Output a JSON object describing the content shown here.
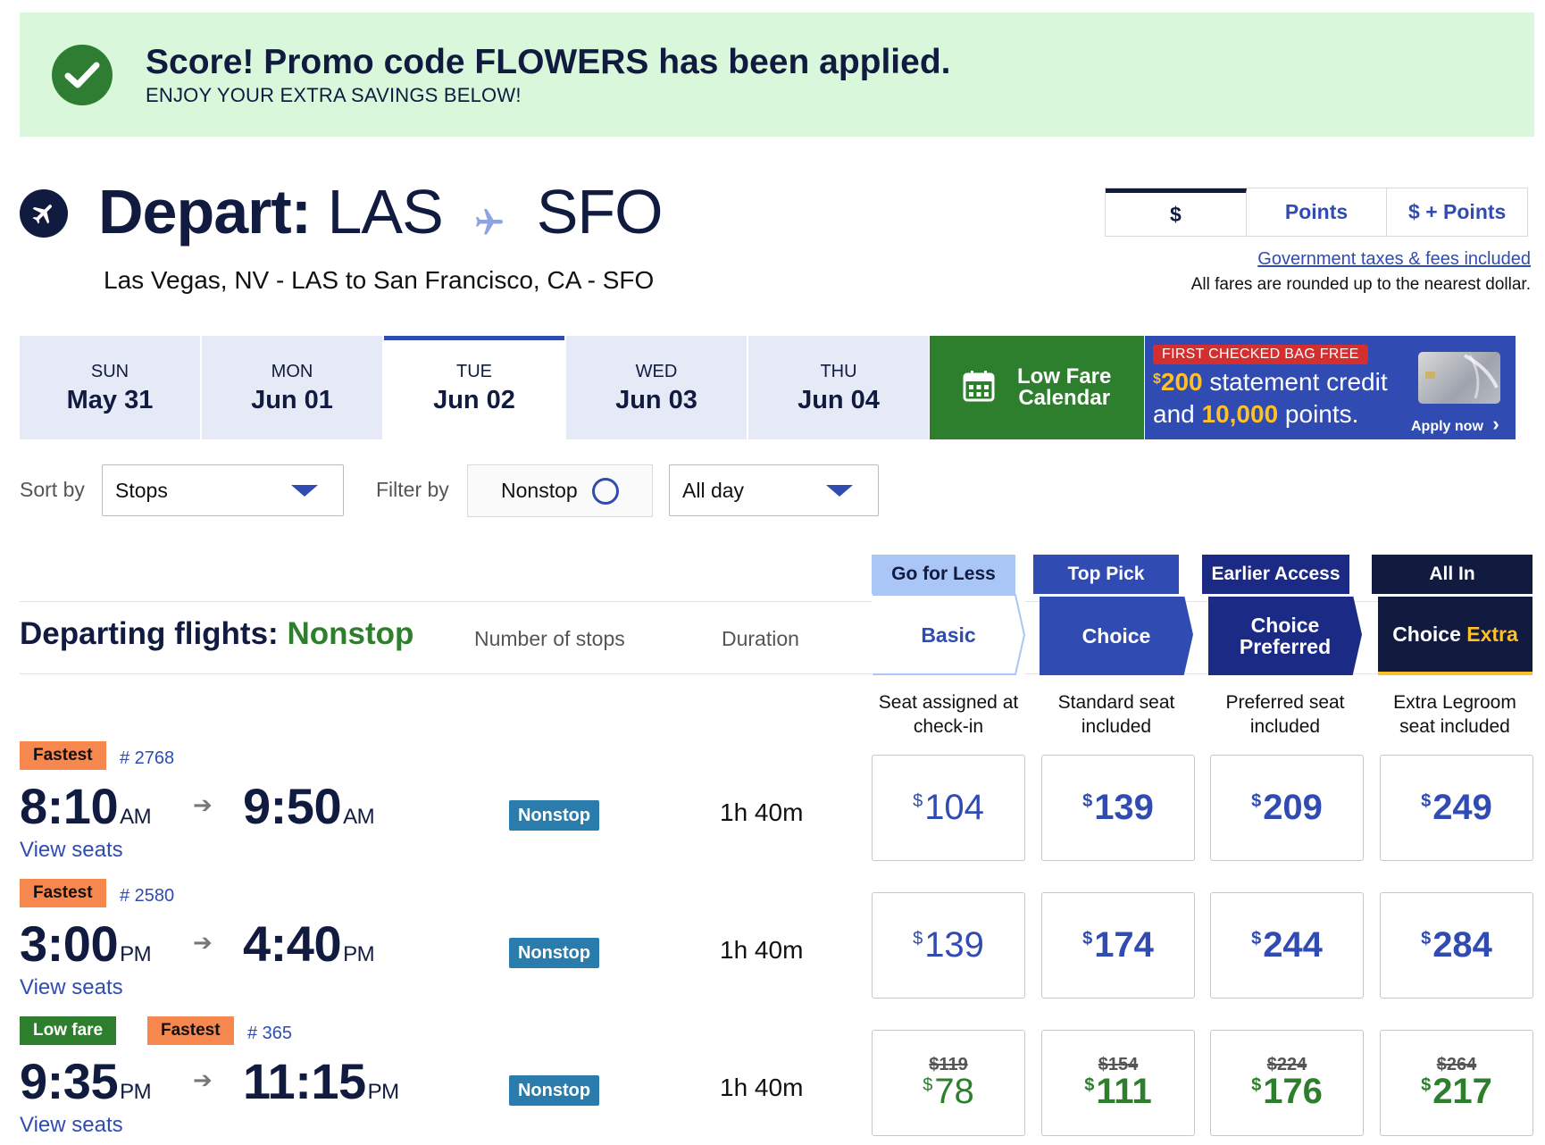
{
  "promo": {
    "title": "Score! Promo code FLOWERS has been applied.",
    "subtitle": "ENJOY YOUR EXTRA SAVINGS BELOW!",
    "icon": "check-circle-icon"
  },
  "header": {
    "depart_label": "Depart:",
    "origin": "LAS",
    "destination": "SFO",
    "route_full": "Las Vegas, NV - LAS to San Francisco, CA - SFO"
  },
  "currency": {
    "options": [
      "$",
      "Points",
      "$ + Points"
    ],
    "selected": "$",
    "taxes_link": "Government taxes & fees included",
    "rounding_note": "All fares are rounded up to the nearest dollar."
  },
  "dates": [
    {
      "dow": "SUN",
      "day": "May 31"
    },
    {
      "dow": "MON",
      "day": "Jun 01"
    },
    {
      "dow": "TUE",
      "day": "Jun 02"
    },
    {
      "dow": "WED",
      "day": "Jun 03"
    },
    {
      "dow": "THU",
      "day": "Jun 04"
    }
  ],
  "selected_date": "Jun 02",
  "low_fare_calendar": {
    "line1": "Low Fare",
    "line2": "Calendar"
  },
  "ad": {
    "badge": "FIRST CHECKED BAG FREE",
    "dollar": "$",
    "amount": "200",
    "line1_rest": " statement credit",
    "line2_pre": "and ",
    "points": "10,000",
    "line2_post": " points.",
    "apply": "Apply now"
  },
  "sort": {
    "label": "Sort by",
    "value": "Stops"
  },
  "filter": {
    "label": "Filter by",
    "nonstop": "Nonstop",
    "time": "All day"
  },
  "section": {
    "title": "Departing flights:",
    "title_highlight": "Nonstop",
    "col_stops": "Number of stops",
    "col_duration": "Duration"
  },
  "fares": [
    {
      "tag": "Go for Less",
      "name": "Basic",
      "name_extra": "",
      "desc1": "Seat assigned at",
      "desc2": "check-in"
    },
    {
      "tag": "Top Pick",
      "name": "Choice",
      "name_extra": "",
      "desc1": "Standard seat",
      "desc2": "included"
    },
    {
      "tag": "Earlier Access",
      "name": "Choice",
      "name_extra": "Preferred",
      "desc1": "Preferred seat",
      "desc2": "included"
    },
    {
      "tag": "All In",
      "name": "Choice",
      "name_extra": "Extra",
      "desc1": "Extra Legroom",
      "desc2": "seat included"
    }
  ],
  "flights": [
    {
      "badges": [
        "Fastest"
      ],
      "flight_no": "# 2768",
      "depart_time": "8:10",
      "depart_ampm": "AM",
      "arrive_time": "9:50",
      "arrive_ampm": "AM",
      "view_seats": "View seats",
      "stops": "Nonstop",
      "duration": "1h 40m",
      "prices": [
        {
          "old": "",
          "price": "104"
        },
        {
          "old": "",
          "price": "139"
        },
        {
          "old": "",
          "price": "209"
        },
        {
          "old": "",
          "price": "249"
        }
      ]
    },
    {
      "badges": [
        "Fastest"
      ],
      "flight_no": "# 2580",
      "depart_time": "3:00",
      "depart_ampm": "PM",
      "arrive_time": "4:40",
      "arrive_ampm": "PM",
      "view_seats": "View seats",
      "stops": "Nonstop",
      "duration": "1h 40m",
      "prices": [
        {
          "old": "",
          "price": "139"
        },
        {
          "old": "",
          "price": "174"
        },
        {
          "old": "",
          "price": "244"
        },
        {
          "old": "",
          "price": "284"
        }
      ]
    },
    {
      "badges": [
        "Low fare",
        "Fastest"
      ],
      "flight_no": "# 365",
      "depart_time": "9:35",
      "depart_ampm": "PM",
      "arrive_time": "11:15",
      "arrive_ampm": "PM",
      "view_seats": "View seats",
      "stops": "Nonstop",
      "duration": "1h 40m",
      "prices": [
        {
          "old": "$119",
          "price": "78"
        },
        {
          "old": "$154",
          "price": "111"
        },
        {
          "old": "$224",
          "price": "176"
        },
        {
          "old": "$264",
          "price": "217"
        }
      ]
    }
  ],
  "currency_symbol": "$",
  "colors": {
    "navy": "#111b40",
    "blue": "#304cb2",
    "green": "#2d7f2d",
    "orange": "#f5874f",
    "promo_bg": "#d8f7db",
    "gold": "#ffbf27"
  }
}
